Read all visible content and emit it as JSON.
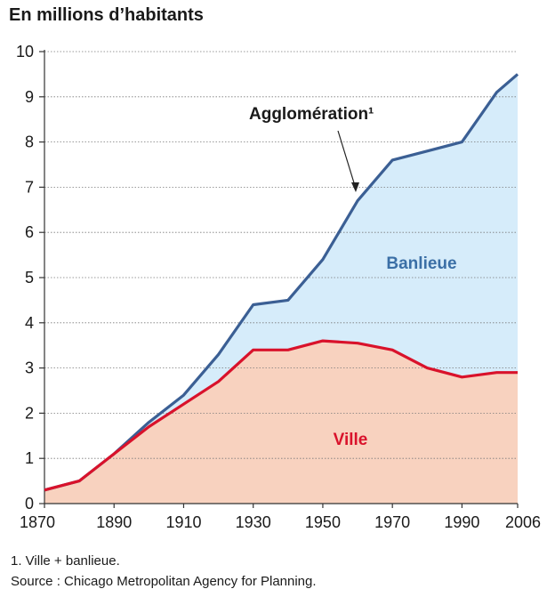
{
  "chart_data": {
    "type": "area",
    "ylabel": "En millions d’habitants",
    "xlim": [
      1870,
      2006
    ],
    "ylim": [
      0,
      10
    ],
    "grid": true,
    "x_ticks": [
      1870,
      1890,
      1910,
      1930,
      1950,
      1970,
      1990,
      2006
    ],
    "y_ticks": [
      0,
      1,
      2,
      3,
      4,
      5,
      6,
      7,
      8,
      9,
      10
    ],
    "x": [
      1870,
      1880,
      1890,
      1900,
      1910,
      1920,
      1930,
      1940,
      1950,
      1960,
      1970,
      1980,
      1990,
      2000,
      2006
    ],
    "series": [
      {
        "name": "Agglomération¹",
        "color": "#3b5f94",
        "values": [
          0.3,
          0.5,
          1.1,
          1.8,
          2.4,
          3.3,
          4.4,
          4.5,
          5.4,
          6.7,
          7.6,
          7.8,
          8.0,
          9.1,
          9.5
        ]
      },
      {
        "name": "Ville",
        "color": "#d9122b",
        "values": [
          0.3,
          0.5,
          1.1,
          1.7,
          2.2,
          2.7,
          3.4,
          3.4,
          3.6,
          3.55,
          3.4,
          3.0,
          2.8,
          2.9,
          2.9
        ]
      }
    ],
    "area_labels": {
      "upper": "Banlieue",
      "lower": "Ville"
    },
    "fill_colors": {
      "upper": "#d6ecfa",
      "lower": "#f8d2bf"
    }
  },
  "notes": {
    "footnote": "1. Ville + banlieue.",
    "source": "Source : Chicago Metropolitan Agency for Planning."
  }
}
